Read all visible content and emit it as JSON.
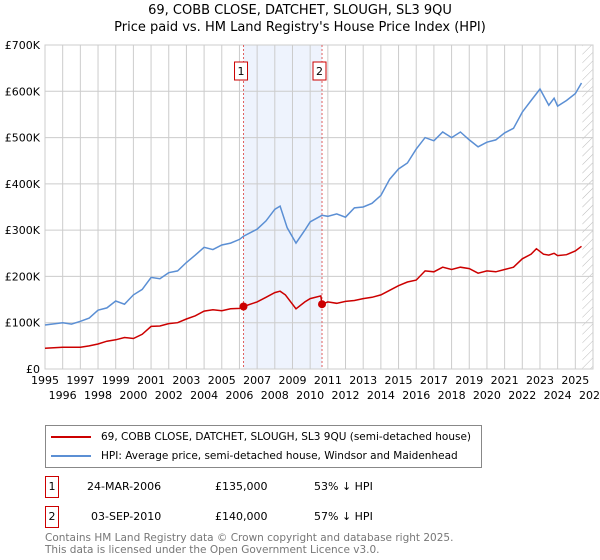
{
  "title_line1": "69, COBB CLOSE, DATCHET, SLOUGH, SL3 9QU",
  "title_line2": "Price paid vs. HM Land Registry's House Price Index (HPI)",
  "chart_data": {
    "type": "line",
    "title": "69, COBB CLOSE, DATCHET, SLOUGH, SL3 9QU — Price paid vs. HM Land Registry's House Price Index (HPI)",
    "xlim": [
      1995,
      2026
    ],
    "ylim": [
      0,
      700000
    ],
    "x_ticks": [
      "1995",
      "1996",
      "1997",
      "1998",
      "1999",
      "2000",
      "2001",
      "2002",
      "2003",
      "2004",
      "2005",
      "2006",
      "2007",
      "2008",
      "2009",
      "2010",
      "2011",
      "2012",
      "2013",
      "2014",
      "2015",
      "2016",
      "2017",
      "2018",
      "2019",
      "2020",
      "2021",
      "2022",
      "2023",
      "2024",
      "2025",
      "2026"
    ],
    "y_ticks": [
      {
        "v": 0,
        "label": "£0"
      },
      {
        "v": 100000,
        "label": "£100K"
      },
      {
        "v": 200000,
        "label": "£200K"
      },
      {
        "v": 300000,
        "label": "£300K"
      },
      {
        "v": 400000,
        "label": "£400K"
      },
      {
        "v": 500000,
        "label": "£500K"
      },
      {
        "v": 600000,
        "label": "£600K"
      },
      {
        "v": 700000,
        "label": "£700K"
      }
    ],
    "grid": true,
    "shaded_range": [
      2006.23,
      2010.67
    ],
    "future_hatch_from": 2025.4,
    "series": [
      {
        "name": "69, COBB CLOSE, DATCHET, SLOUGH, SL3 9QU (semi-detached house)",
        "color": "#cc0000",
        "x": [
          1995,
          1996,
          1997,
          1997.5,
          1998,
          1998.5,
          1999,
          1999.5,
          2000,
          2000.5,
          2001,
          2001.5,
          2002,
          2002.5,
          2003,
          2003.5,
          2004,
          2004.5,
          2005,
          2005.5,
          2006,
          2006.23,
          2007,
          2007.5,
          2008,
          2008.3,
          2008.6,
          2009.2,
          2009.7,
          2010,
          2010.6,
          2010.67,
          2011,
          2011.5,
          2012,
          2012.5,
          2013,
          2013.5,
          2014,
          2014.5,
          2015,
          2015.5,
          2016,
          2016.5,
          2017,
          2017.5,
          2018,
          2018.5,
          2019,
          2019.5,
          2020,
          2020.5,
          2021,
          2021.5,
          2022,
          2022.5,
          2022.8,
          2023.2,
          2023.5,
          2023.8,
          2024,
          2024.5,
          2025,
          2025.35
        ],
        "y": [
          45000,
          47000,
          47000,
          50000,
          54000,
          60000,
          63000,
          68000,
          66000,
          75000,
          92000,
          93000,
          98000,
          100000,
          108000,
          115000,
          125000,
          128000,
          126000,
          130000,
          131000,
          135000,
          145000,
          155000,
          165000,
          168000,
          160000,
          130000,
          145000,
          152000,
          158000,
          140000,
          145000,
          142000,
          146000,
          148000,
          152000,
          155000,
          160000,
          170000,
          180000,
          188000,
          192000,
          212000,
          210000,
          220000,
          215000,
          220000,
          217000,
          207000,
          212000,
          210000,
          215000,
          220000,
          238000,
          248000,
          260000,
          248000,
          246000,
          250000,
          245000,
          247000,
          255000,
          265000
        ]
      },
      {
        "name": "HPI: Average price, semi-detached house, Windsor and Maidenhead",
        "color": "#5b8fd4",
        "x": [
          1995,
          1996,
          1996.5,
          1997,
          1997.5,
          1998,
          1998.5,
          1999,
          1999.5,
          2000,
          2000.5,
          2001,
          2001.5,
          2002,
          2002.5,
          2003,
          2003.5,
          2004,
          2004.5,
          2005,
          2005.5,
          2006,
          2006.23,
          2007,
          2007.5,
          2008,
          2008.3,
          2008.7,
          2009.2,
          2009.7,
          2010,
          2010.67,
          2011,
          2011.5,
          2012,
          2012.5,
          2013,
          2013.5,
          2014,
          2014.5,
          2015,
          2015.5,
          2016,
          2016.5,
          2017,
          2017.5,
          2018,
          2018.5,
          2019,
          2019.5,
          2020,
          2020.5,
          2021,
          2021.5,
          2022,
          2022.5,
          2023,
          2023.5,
          2023.8,
          2024,
          2024.5,
          2025,
          2025.35
        ],
        "y": [
          95000,
          100000,
          97000,
          103000,
          110000,
          127000,
          132000,
          147000,
          140000,
          160000,
          172000,
          198000,
          195000,
          208000,
          212000,
          230000,
          246000,
          263000,
          258000,
          268000,
          272000,
          280000,
          287000,
          302000,
          320000,
          345000,
          352000,
          305000,
          272000,
          300000,
          318000,
          332000,
          330000,
          335000,
          328000,
          348000,
          350000,
          358000,
          375000,
          410000,
          432000,
          445000,
          475000,
          500000,
          493000,
          512000,
          500000,
          512000,
          495000,
          480000,
          490000,
          495000,
          510000,
          520000,
          555000,
          580000,
          605000,
          570000,
          585000,
          568000,
          580000,
          595000,
          618000
        ]
      }
    ],
    "markers": [
      {
        "label": "1",
        "x": 2006.23,
        "y": 135000
      },
      {
        "label": "2",
        "x": 2010.67,
        "y": 140000
      }
    ]
  },
  "legend": [
    {
      "label": "69, COBB CLOSE, DATCHET, SLOUGH, SL3 9QU (semi-detached house)",
      "color": "#cc0000"
    },
    {
      "label": "HPI: Average price, semi-detached house, Windsor and Maidenhead",
      "color": "#5b8fd4"
    }
  ],
  "transactions": [
    {
      "num": "1",
      "date": "24-MAR-2006",
      "price": "£135,000",
      "hpi": "53% ↓ HPI"
    },
    {
      "num": "2",
      "date": "03-SEP-2010",
      "price": "£140,000",
      "hpi": "57% ↓ HPI"
    }
  ],
  "footer_line1": "Contains HM Land Registry data © Crown copyright and database right 2025.",
  "footer_line2": "This data is licensed under the Open Government Licence v3.0."
}
